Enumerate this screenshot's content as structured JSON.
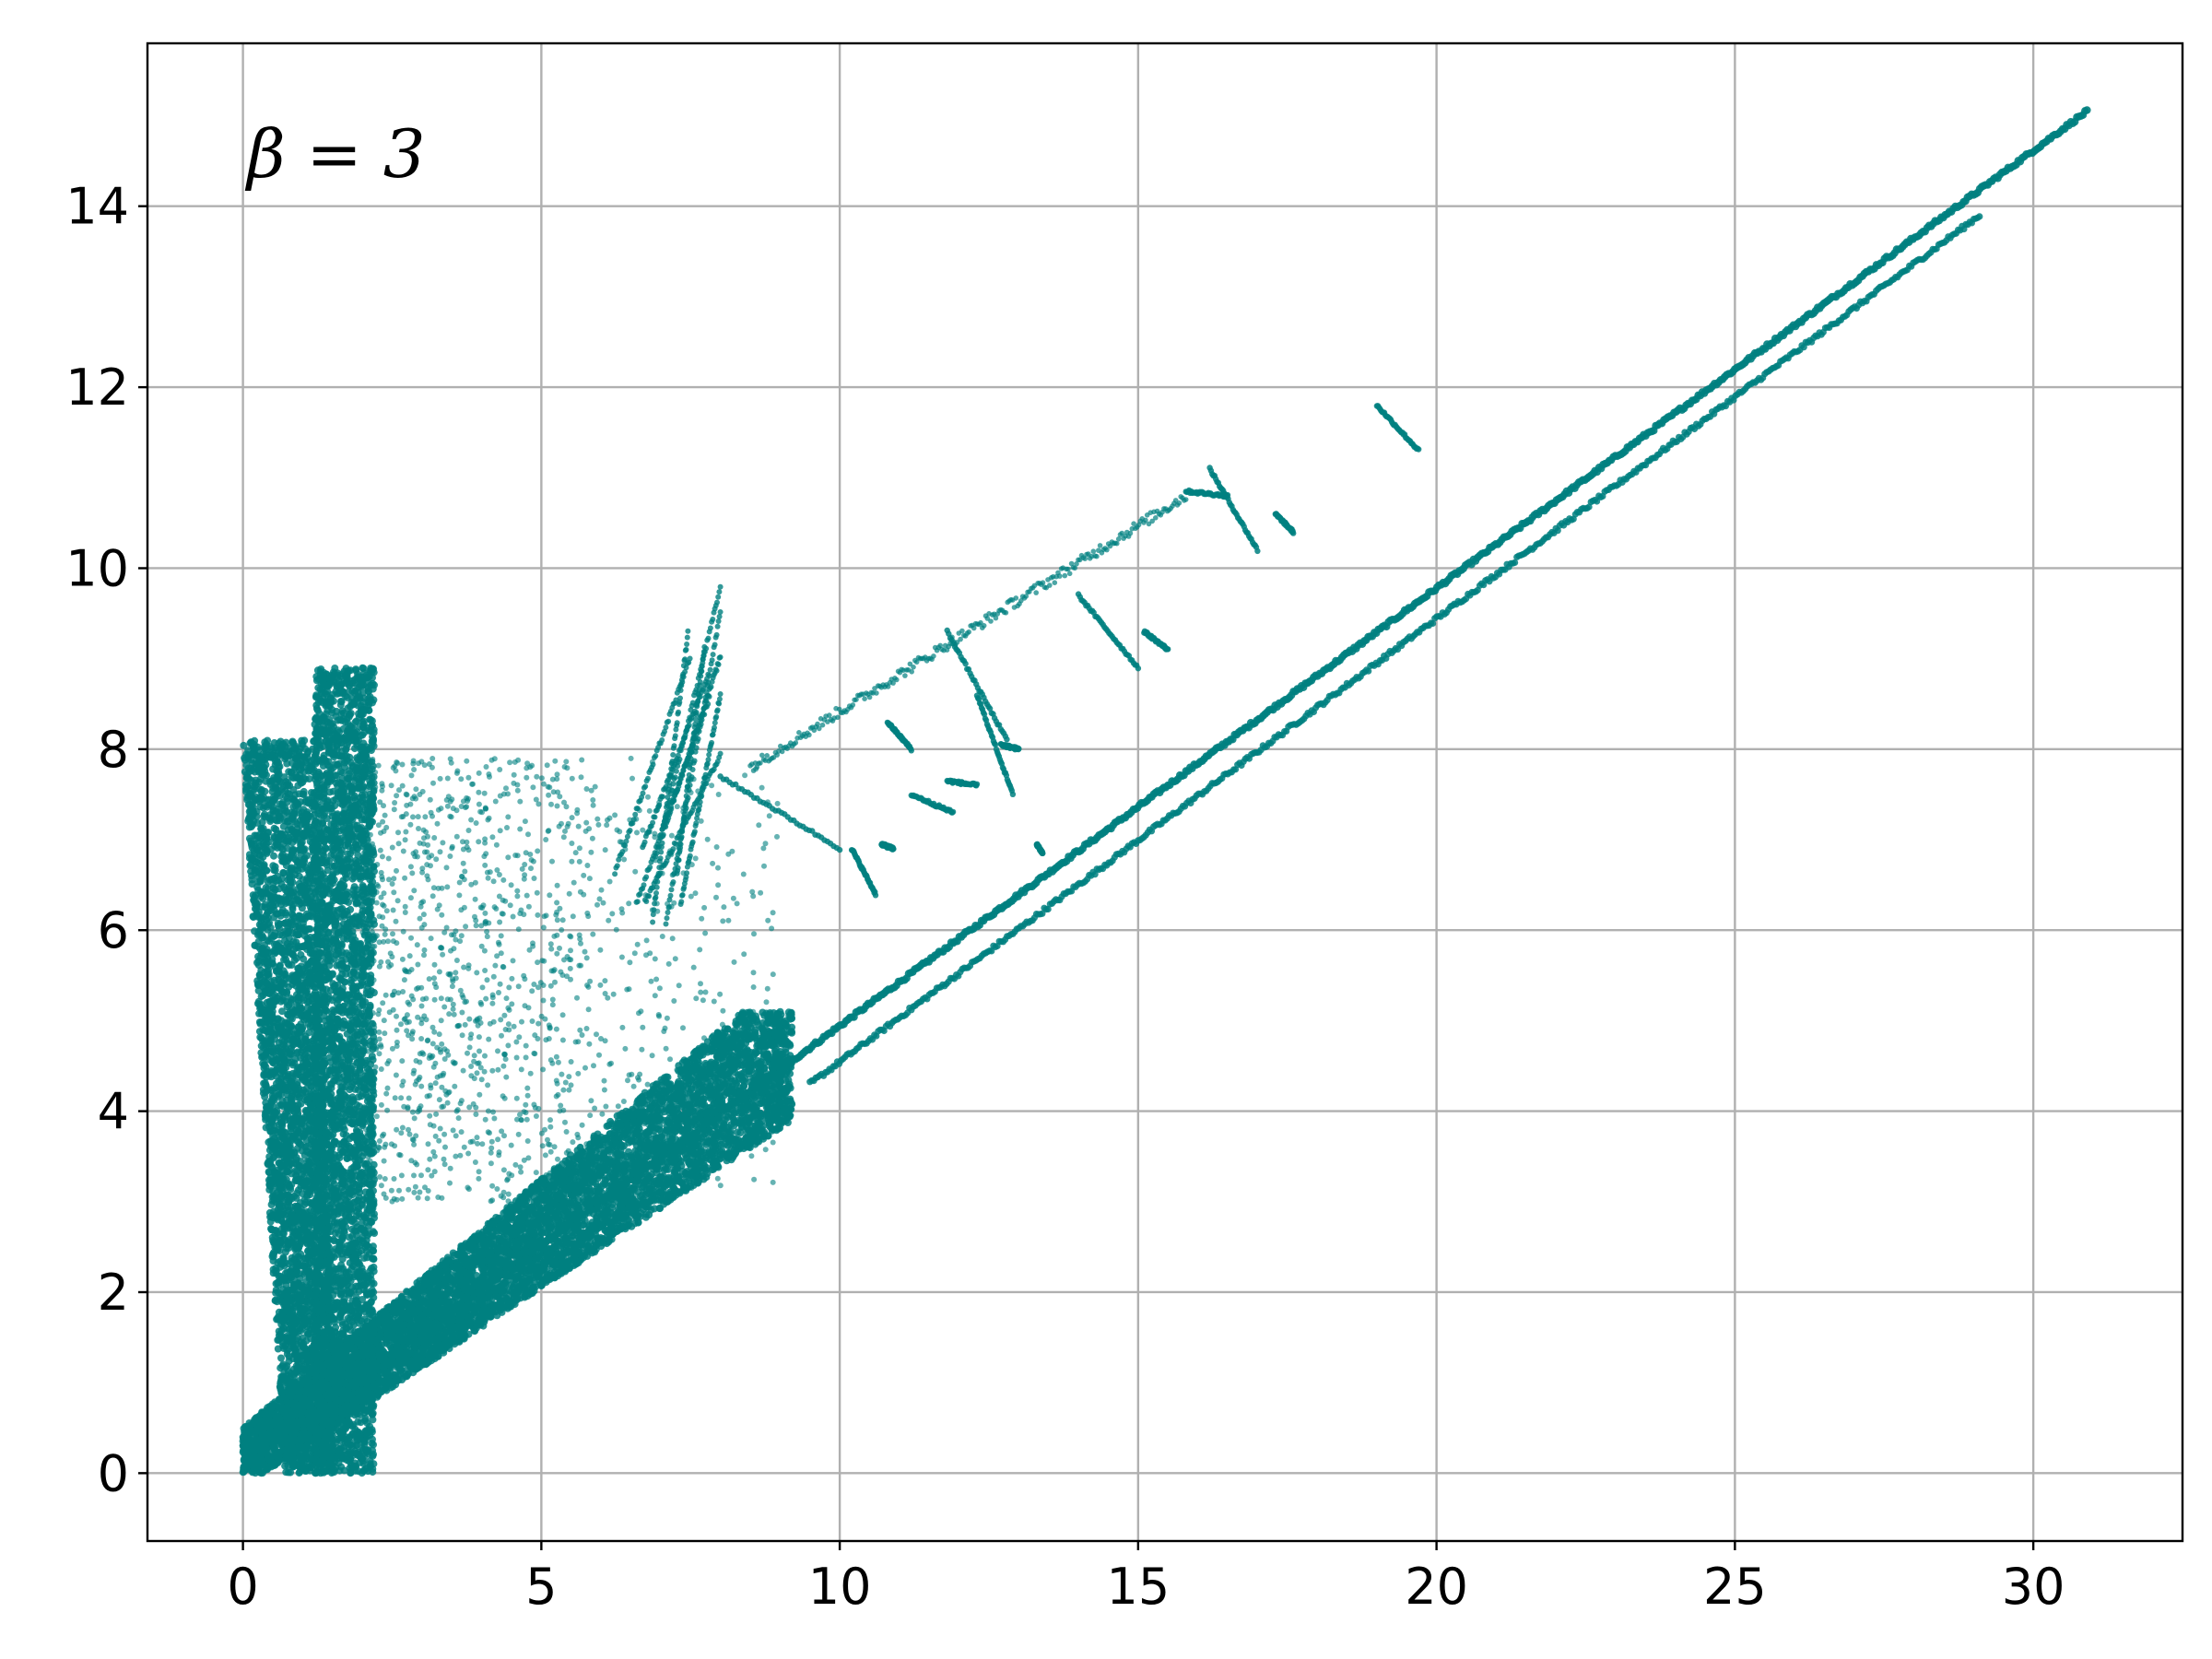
{
  "chart_data": {
    "type": "scatter",
    "title": "",
    "xlabel": "",
    "ylabel": "",
    "annotation": "β = 3",
    "xlim": [
      -1.6,
      32.5
    ],
    "ylim": [
      -0.75,
      15.8
    ],
    "grid": true,
    "x_ticks": [
      0,
      5,
      10,
      15,
      20,
      25,
      30
    ],
    "y_ticks": [
      0,
      2,
      4,
      6,
      8,
      10,
      12,
      14
    ],
    "x_tick_labels": [
      "0",
      "5",
      "10",
      "15",
      "20",
      "25",
      "30"
    ],
    "y_tick_labels": [
      "0",
      "2",
      "4",
      "6",
      "8",
      "10",
      "12",
      "14"
    ],
    "series": [
      {
        "color": "#008080",
        "marker": "point",
        "clusters": [
          {
            "kind": "main_diagonal_line",
            "x_range": [
              0.4,
              30.9
            ],
            "y_range": [
              0.3,
              15.05
            ]
          },
          {
            "kind": "lower_diagonal_line",
            "x_range": [
              9.5,
              29.1
            ],
            "y_range": [
              4.3,
              13.9
            ]
          },
          {
            "kind": "dense_wedge",
            "x_range": [
              0.0,
              9.2
            ],
            "y_range": [
              0.0,
              5.1
            ]
          },
          {
            "kind": "dense_vertical_band",
            "x_range": [
              0.0,
              1.2
            ],
            "y_range": [
              0.0,
              8.1
            ]
          },
          {
            "kind": "dense_vertical_band",
            "x_range": [
              1.2,
              2.2
            ],
            "y_range": [
              0.0,
              8.9
            ]
          },
          {
            "kind": "scattered_cloud",
            "x_range": [
              2.0,
              9.0
            ],
            "y_range": [
              3.0,
              7.9
            ]
          },
          {
            "kind": "scattered_branches",
            "x_range": [
              6.0,
              8.0
            ],
            "y_range": [
              6.0,
              9.9
            ]
          },
          {
            "kind": "diagonal_branch",
            "x_range": [
              8.5,
              15.8
            ],
            "y_range": [
              7.8,
              10.8
            ]
          },
          {
            "kind": "fragment",
            "points": [
              [
                15.8,
                10.85
              ],
              [
                16.5,
                10.8
              ]
            ]
          },
          {
            "kind": "fragment",
            "points": [
              [
                16.2,
                11.1
              ],
              [
                17.0,
                10.2
              ]
            ]
          },
          {
            "kind": "fragment",
            "points": [
              [
                19.0,
                11.8
              ],
              [
                19.7,
                11.3
              ]
            ]
          },
          {
            "kind": "fragment",
            "points": [
              [
                17.3,
                10.6
              ],
              [
                17.6,
                10.4
              ]
            ]
          },
          {
            "kind": "fragment",
            "points": [
              [
                14.0,
                9.7
              ],
              [
                15.0,
                8.9
              ]
            ]
          },
          {
            "kind": "fragment",
            "points": [
              [
                15.1,
                9.3
              ],
              [
                15.5,
                9.1
              ]
            ]
          },
          {
            "kind": "fragment",
            "points": [
              [
                11.8,
                9.3
              ],
              [
                12.8,
                8.1
              ]
            ]
          },
          {
            "kind": "fragment",
            "points": [
              [
                12.3,
                8.6
              ],
              [
                12.9,
                7.5
              ]
            ]
          },
          {
            "kind": "fragment",
            "points": [
              [
                11.2,
                7.5
              ],
              [
                11.9,
                7.3
              ]
            ]
          },
          {
            "kind": "fragment",
            "points": [
              [
                8.0,
                7.7
              ],
              [
                10.0,
                6.9
              ]
            ]
          },
          {
            "kind": "fragment",
            "points": [
              [
                10.2,
                6.9
              ],
              [
                10.6,
                6.4
              ]
            ]
          },
          {
            "kind": "fragment",
            "points": [
              [
                10.7,
                6.95
              ],
              [
                10.9,
                6.9
              ]
            ]
          },
          {
            "kind": "fragment",
            "points": [
              [
                10.8,
                8.3
              ],
              [
                11.2,
                8.0
              ]
            ]
          },
          {
            "kind": "fragment",
            "points": [
              [
                12.7,
                8.05
              ],
              [
                13.0,
                8.0
              ]
            ]
          },
          {
            "kind": "fragment",
            "points": [
              [
                13.3,
                6.95
              ],
              [
                13.4,
                6.85
              ]
            ]
          },
          {
            "kind": "fragment",
            "points": [
              [
                11.8,
                7.65
              ],
              [
                12.3,
                7.6
              ]
            ]
          }
        ]
      }
    ]
  }
}
